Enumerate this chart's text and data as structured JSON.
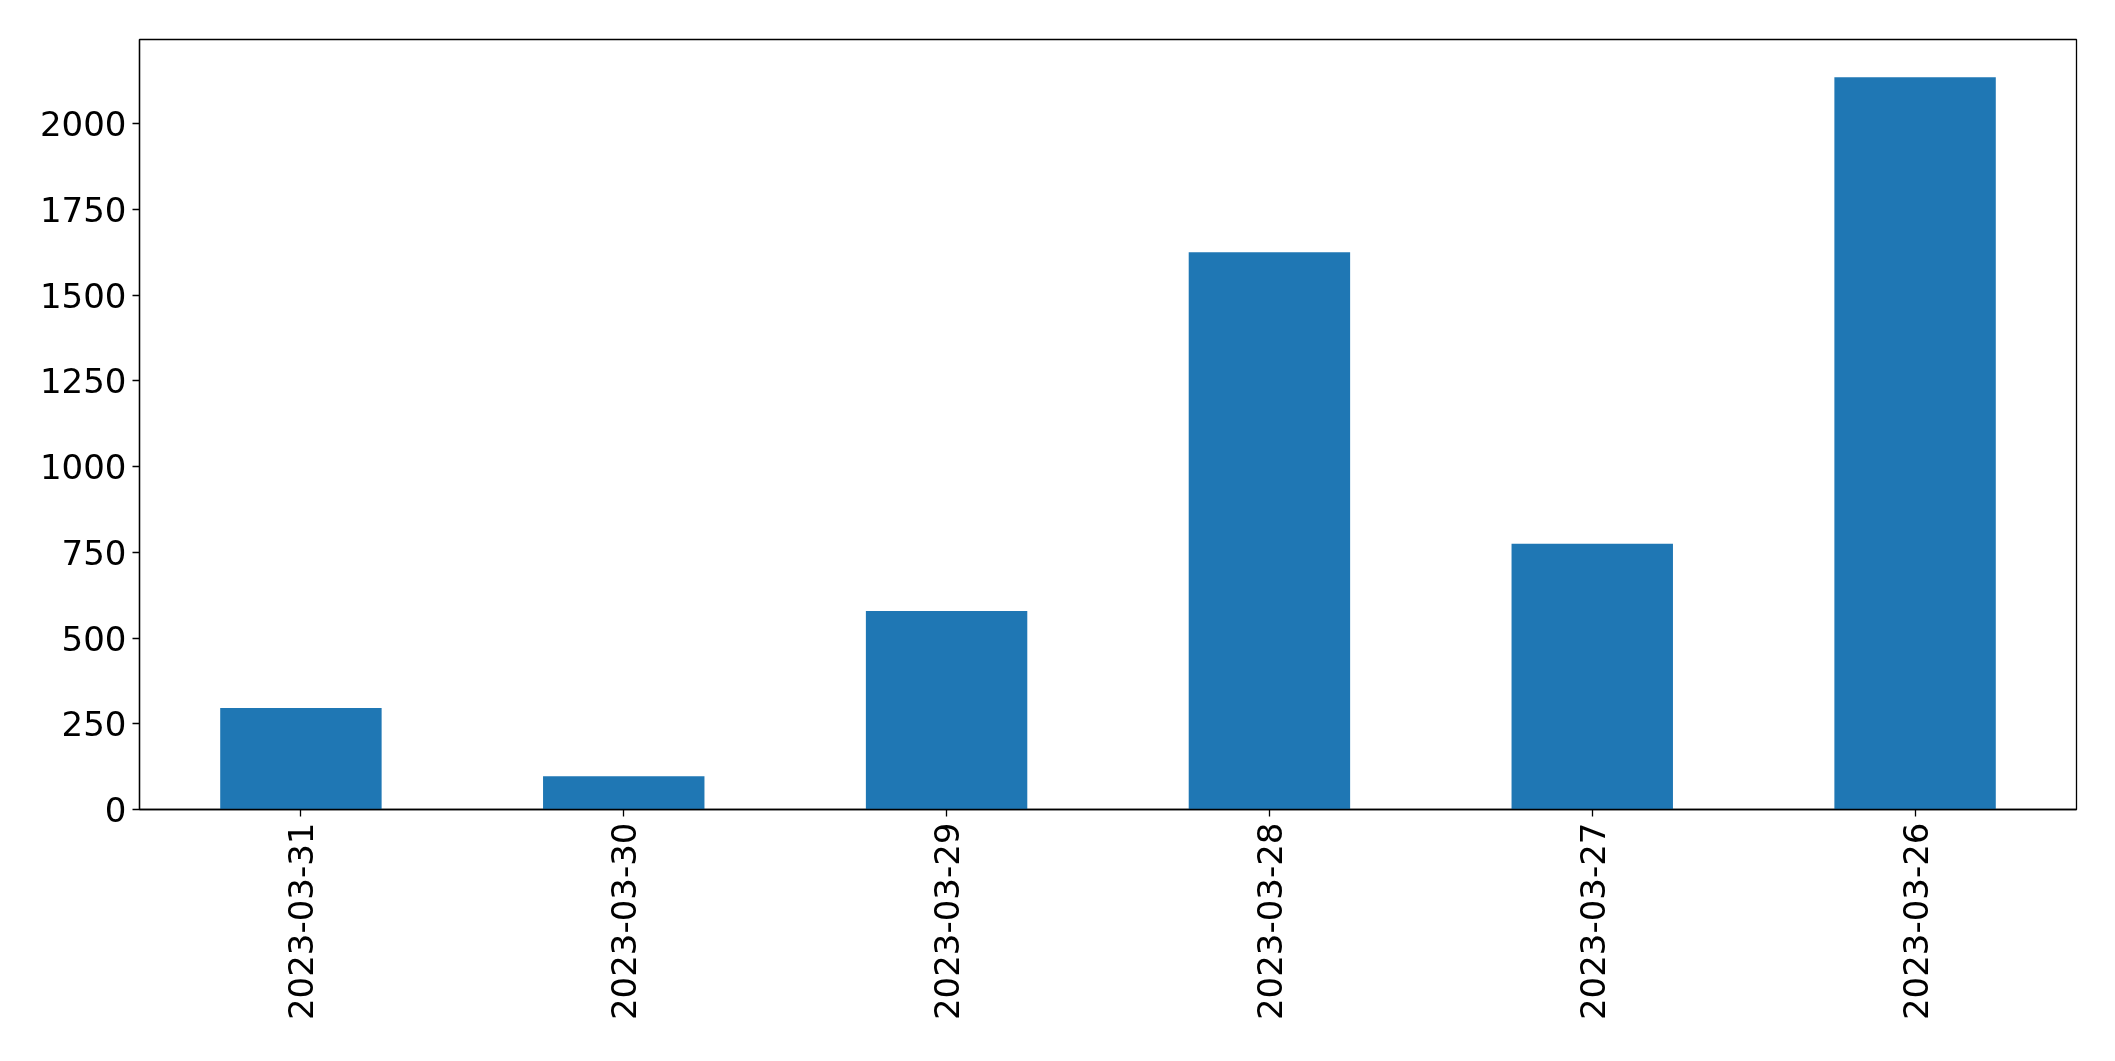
{
  "chart_data": {
    "type": "bar",
    "categories": [
      "2023-03-31",
      "2023-03-30",
      "2023-03-29",
      "2023-03-28",
      "2023-03-27",
      "2023-03-26"
    ],
    "values": [
      296,
      97,
      579,
      1625,
      775,
      2135
    ],
    "color": "#1f77b4",
    "ylim": [
      0,
      2245
    ],
    "yticks": [
      0,
      250,
      500,
      750,
      1000,
      1250,
      1500,
      1750,
      2000
    ],
    "grid": false
  }
}
